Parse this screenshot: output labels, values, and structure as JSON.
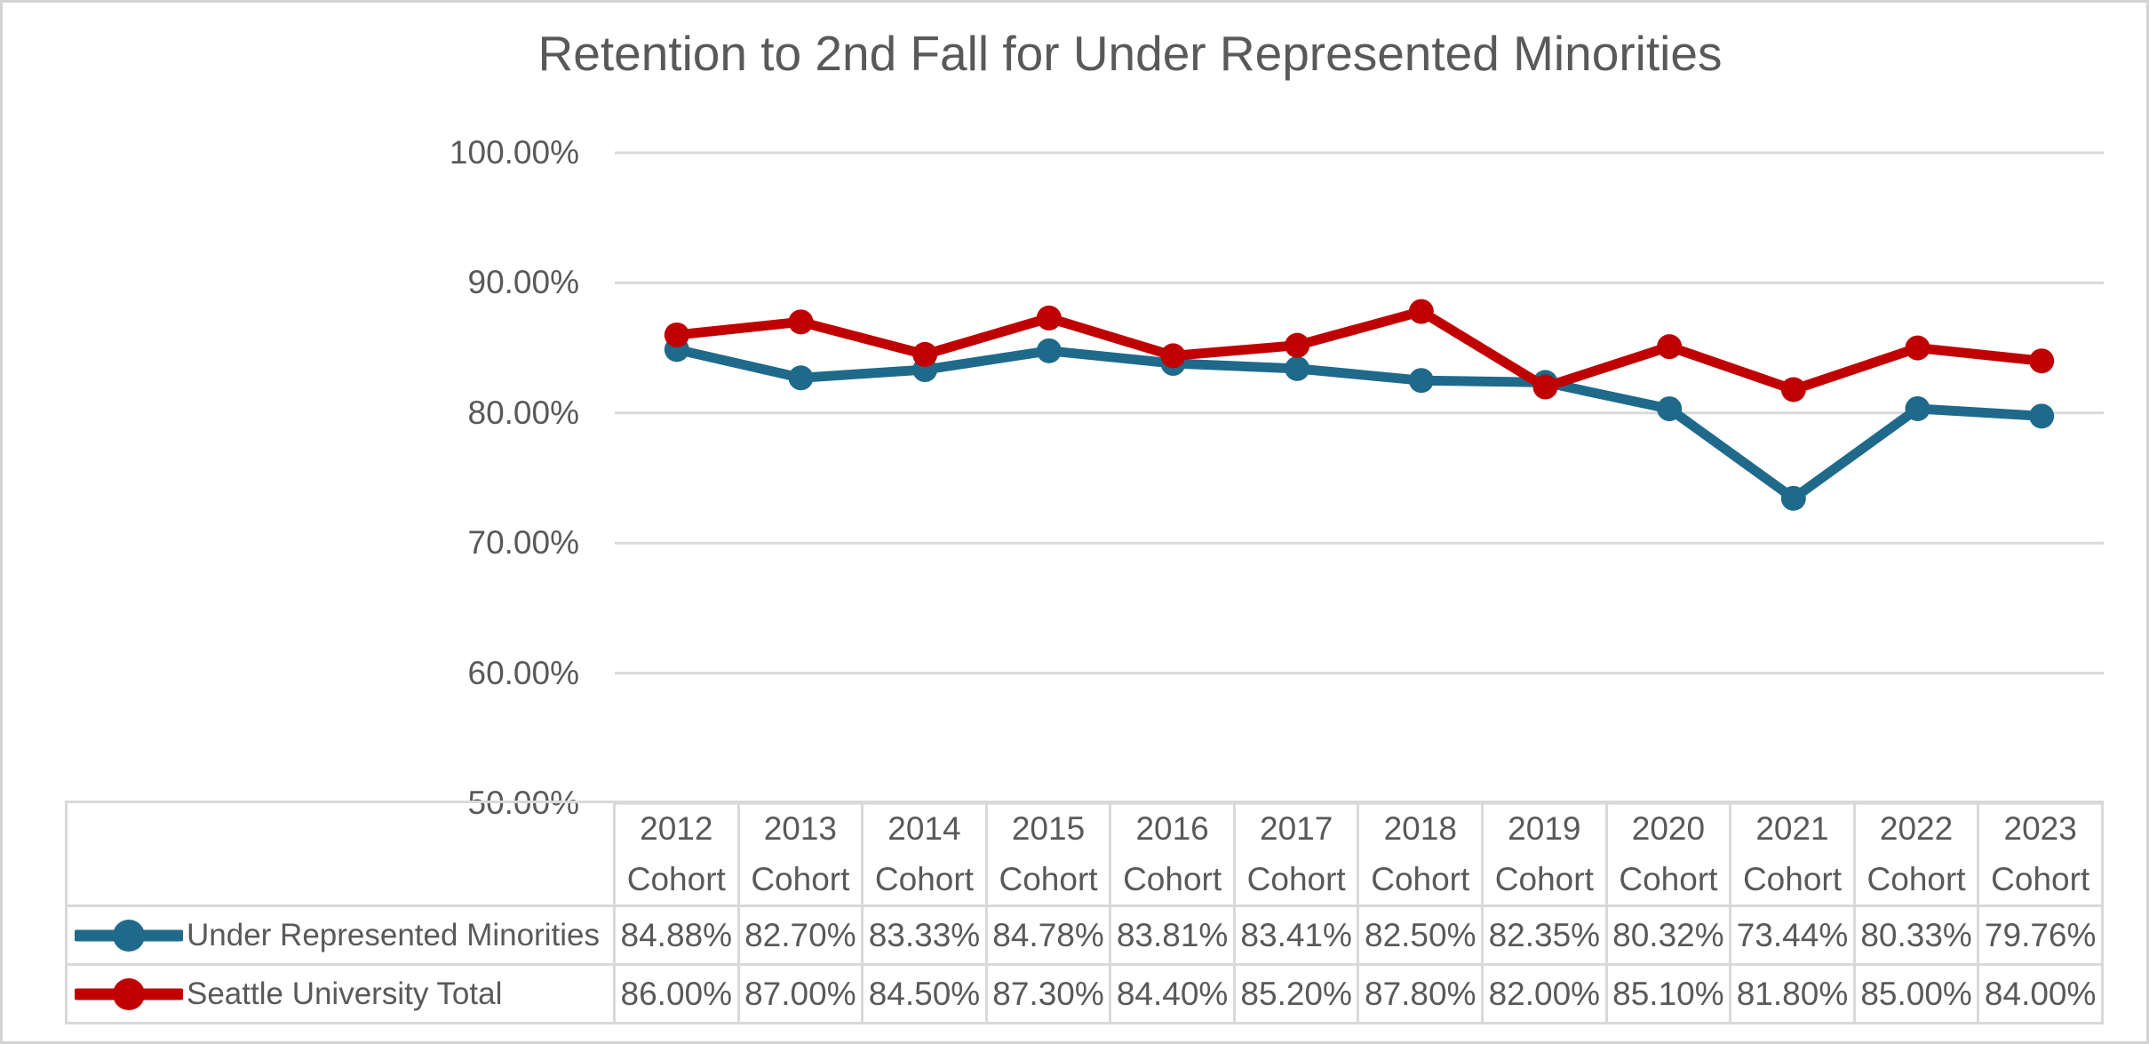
{
  "chart_data": {
    "type": "line",
    "title": "Retention to 2nd Fall for Under Represented Minorities",
    "categories": [
      "2012 Cohort",
      "2013 Cohort",
      "2014 Cohort",
      "2015 Cohort",
      "2016 Cohort",
      "2017 Cohort",
      "2018 Cohort",
      "2019 Cohort",
      "2020 Cohort",
      "2021 Cohort",
      "2022 Cohort",
      "2023 Cohort"
    ],
    "category_years": [
      "2012",
      "2013",
      "2014",
      "2015",
      "2016",
      "2017",
      "2018",
      "2019",
      "2020",
      "2021",
      "2022",
      "2023"
    ],
    "category_word": "Cohort",
    "series": [
      {
        "name": "Under Represented Minorities",
        "color": "#1f6a8b",
        "values": [
          84.88,
          82.7,
          83.33,
          84.78,
          83.81,
          83.41,
          82.5,
          82.35,
          80.32,
          73.44,
          80.33,
          79.76
        ],
        "labels": [
          "84.88%",
          "82.70%",
          "83.33%",
          "84.78%",
          "83.81%",
          "83.41%",
          "82.50%",
          "82.35%",
          "80.32%",
          "73.44%",
          "80.33%",
          "79.76%"
        ]
      },
      {
        "name": "Seattle University Total",
        "color": "#c00000",
        "values": [
          86.0,
          87.0,
          84.5,
          87.3,
          84.4,
          85.2,
          87.8,
          82.0,
          85.1,
          81.8,
          85.0,
          84.0
        ],
        "labels": [
          "86.00%",
          "87.00%",
          "84.50%",
          "87.30%",
          "84.40%",
          "85.20%",
          "87.80%",
          "82.00%",
          "85.10%",
          "81.80%",
          "85.00%",
          "84.00%"
        ]
      }
    ],
    "y_axis": {
      "ticks": [
        "100.00%",
        "90.00%",
        "80.00%",
        "70.00%",
        "60.00%",
        "50.00%"
      ],
      "tick_values": [
        100,
        90,
        80,
        70,
        60,
        50
      ],
      "min": 50,
      "max": 100
    },
    "xlabel": "",
    "ylabel": "",
    "grid": "horizontal",
    "gridline_color": "#d9d9d9",
    "table_border_color": "#d9d9d9",
    "text_color": "#595959",
    "marker": "circle",
    "legend_position": "data-table-left-column"
  }
}
